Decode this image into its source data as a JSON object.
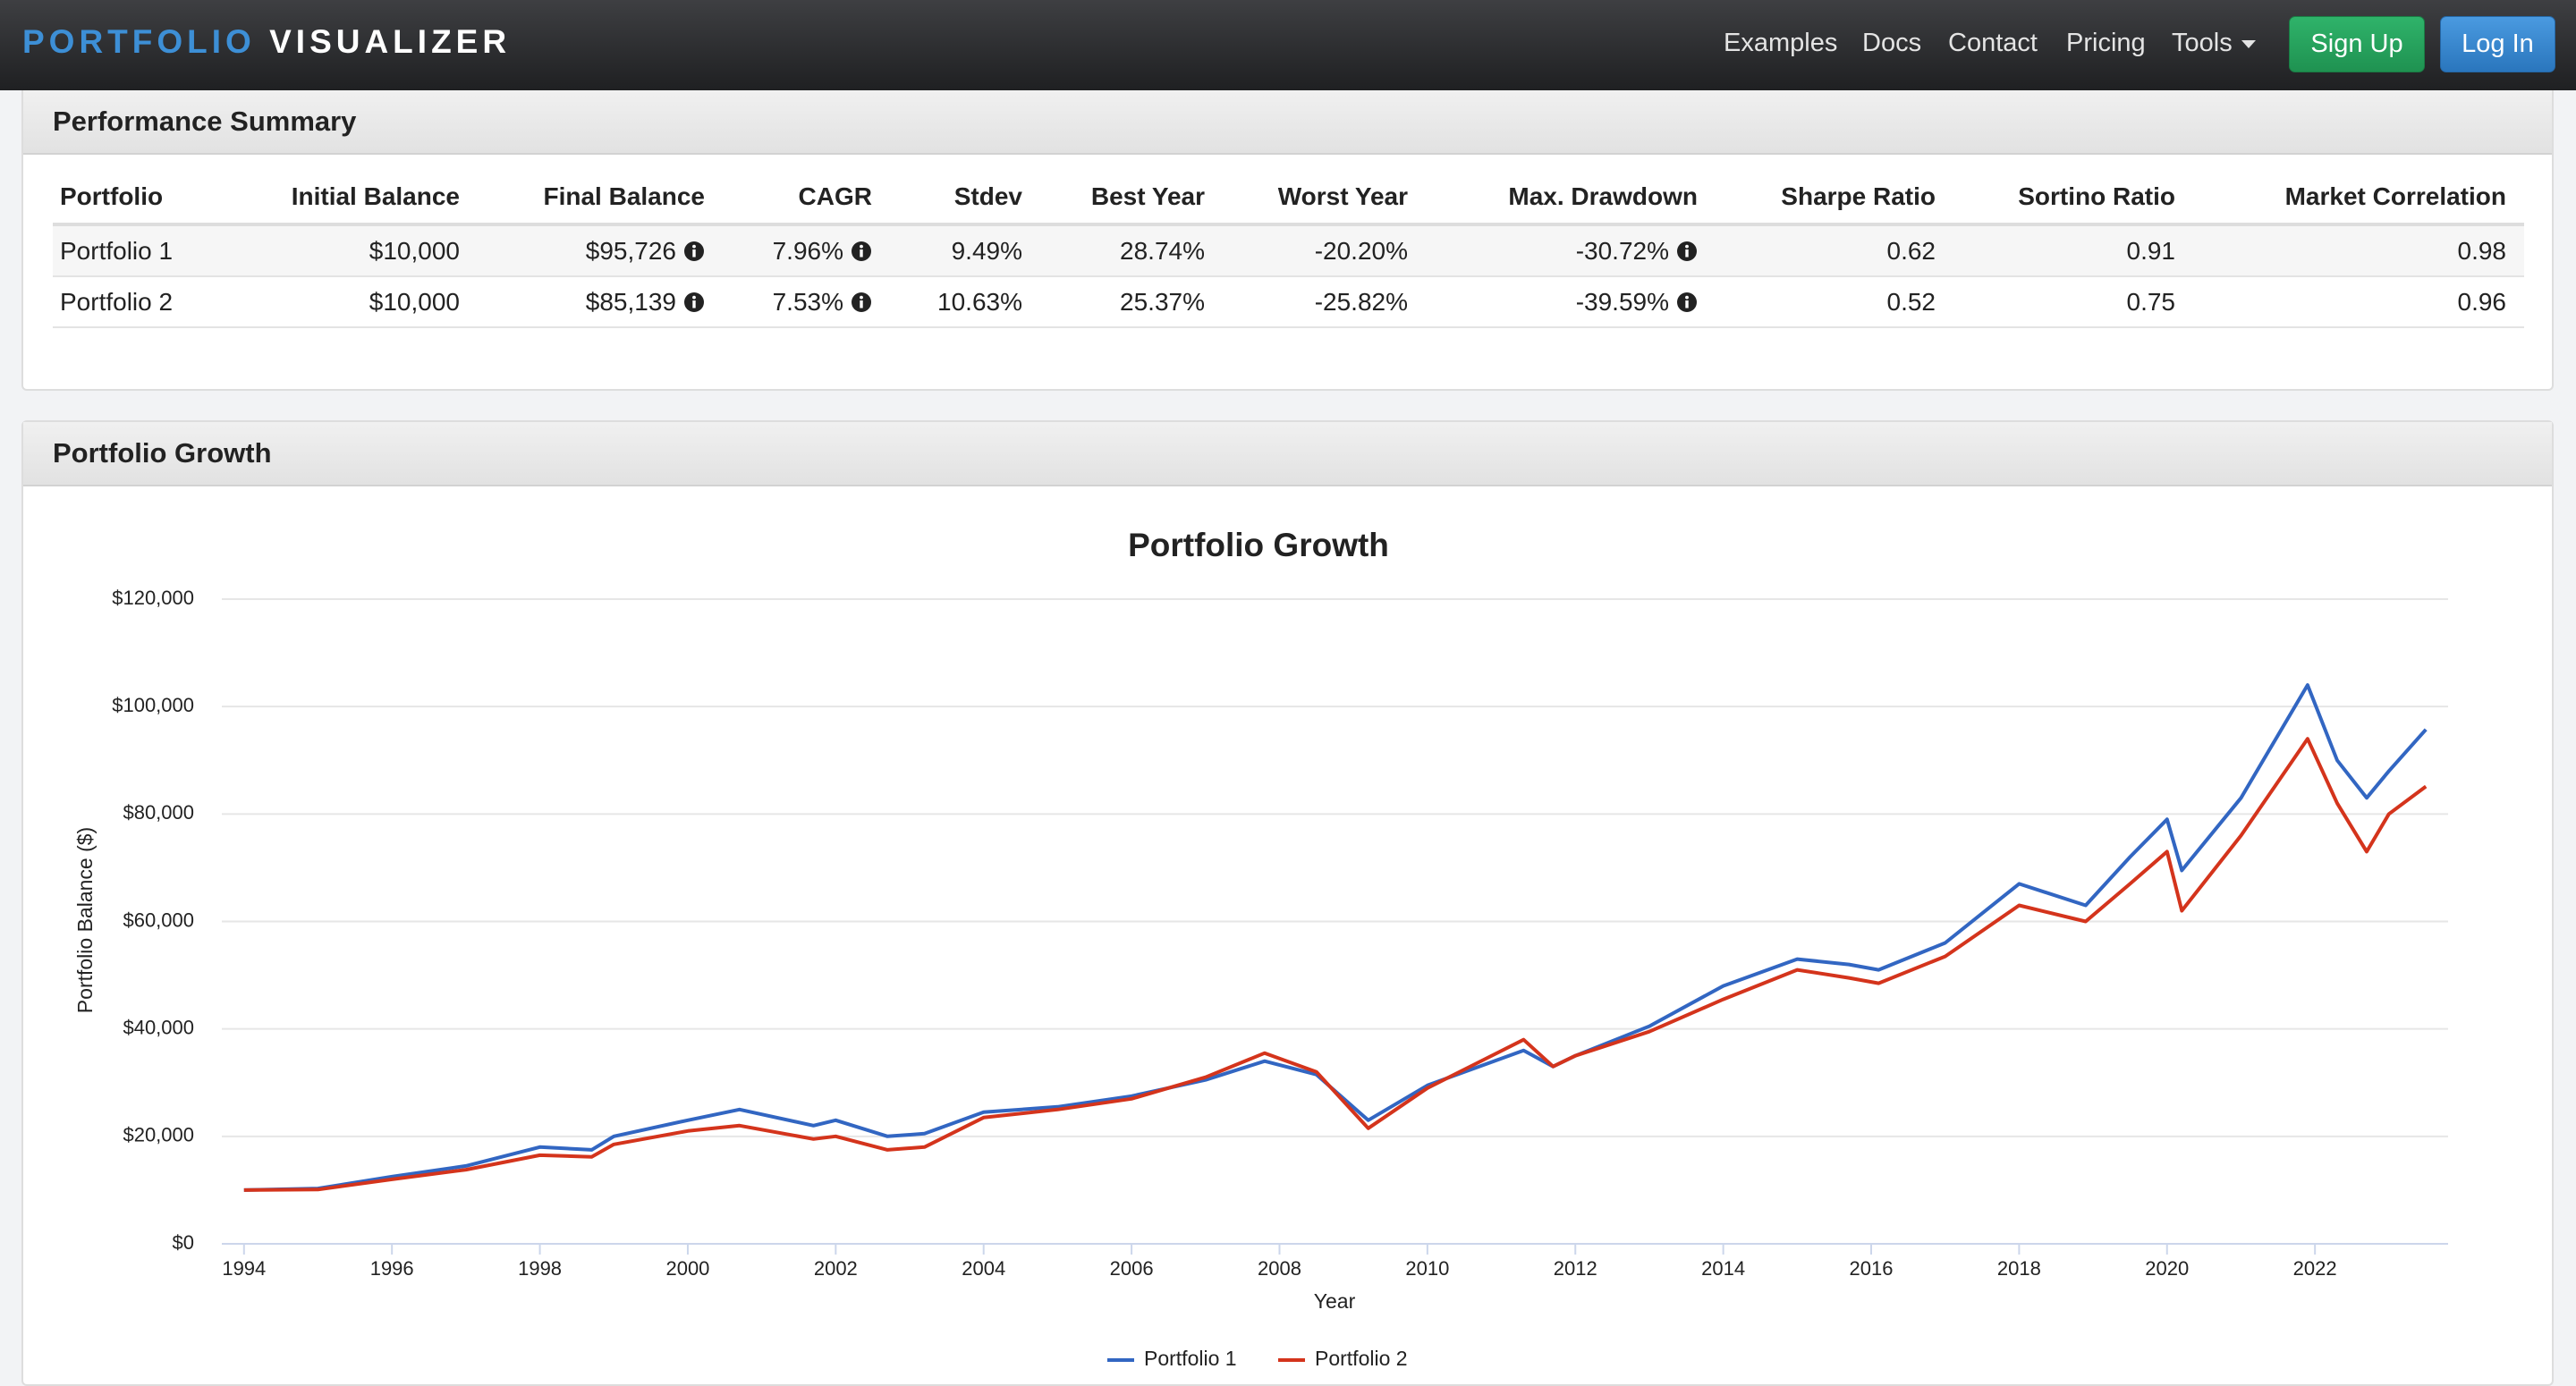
{
  "nav": {
    "brand": [
      "PORTFOLIO",
      "VISUALIZER"
    ],
    "links": [
      "Examples",
      "Docs",
      "Contact",
      "Pricing",
      "Tools"
    ],
    "signup": "Sign Up",
    "login": "Log In"
  },
  "summary": {
    "title": "Performance Summary",
    "table": {
      "header": [
        "Portfolio",
        "Initial Balance",
        "Final Balance",
        "CAGR",
        "Stdev",
        "Best Year",
        "Worst Year",
        "Max. Drawdown",
        "Sharpe Ratio",
        "Sortino Ratio",
        "Market Correlation"
      ],
      "rows": [
        [
          "Portfolio 1",
          "$10,000",
          "$95,726",
          "7.96%",
          "9.49%",
          "28.74%",
          "-20.20%",
          "-30.72%",
          "0.62",
          "0.91",
          "0.98"
        ],
        [
          "Portfolio 2",
          "$10,000",
          "$85,139",
          "7.53%",
          "10.63%",
          "25.37%",
          "-25.82%",
          "-39.59%",
          "0.52",
          "0.75",
          "0.96"
        ]
      ]
    }
  },
  "growth": {
    "title": "Portfolio Growth"
  },
  "chart_data": {
    "type": "line",
    "title": "Portfolio Growth",
    "x_label": "Year",
    "y_label": "Portfolio Balance ($)",
    "x": [
      1994.0,
      1995.0,
      1996.0,
      1997.0,
      1998.0,
      1998.7,
      1999.0,
      2000.0,
      2000.7,
      2001.7,
      2002.0,
      2002.7,
      2003.2,
      2004.0,
      2005.0,
      2006.0,
      2007.0,
      2007.8,
      2008.5,
      2009.2,
      2010.0,
      2011.3,
      2011.7,
      2012.0,
      2013.0,
      2014.0,
      2015.0,
      2015.7,
      2016.1,
      2017.0,
      2018.0,
      2018.9,
      2019.5,
      2020.0,
      2020.2,
      2021.0,
      2021.9,
      2022.3,
      2022.7,
      2023.0,
      2023.5
    ],
    "series": [
      {
        "name": "Portfolio 1",
        "color": "#3266c2",
        "values": [
          10000,
          10300,
          12500,
          14500,
          18000,
          17500,
          20000,
          23000,
          25000,
          22000,
          23000,
          20000,
          20500,
          24500,
          25500,
          27500,
          30500,
          34000,
          31500,
          23000,
          29500,
          36000,
          33000,
          35000,
          40500,
          48000,
          53000,
          52000,
          51000,
          56000,
          67000,
          63000,
          72000,
          79000,
          69500,
          83000,
          104000,
          90000,
          83000,
          88000,
          95726
        ]
      },
      {
        "name": "Portfolio 2",
        "color": "#d4341c",
        "values": [
          10000,
          10100,
          12000,
          13800,
          16500,
          16200,
          18500,
          21000,
          22000,
          19500,
          20000,
          17500,
          18000,
          23500,
          25000,
          27000,
          31000,
          35500,
          32000,
          21500,
          29000,
          38000,
          33000,
          35000,
          39500,
          45500,
          51000,
          49500,
          48500,
          53500,
          63000,
          60000,
          67000,
          73000,
          62000,
          76000,
          94000,
          82000,
          73000,
          80000,
          85139
        ]
      }
    ],
    "xlim": [
      1993.7,
      2023.8
    ],
    "ylim": [
      0,
      120000
    ],
    "xticks": [
      1994,
      1996,
      1998,
      2000,
      2002,
      2004,
      2006,
      2008,
      2010,
      2012,
      2014,
      2016,
      2018,
      2020,
      2022
    ],
    "yticks": [
      {
        "value": 0,
        "label": "$0"
      },
      {
        "value": 20000,
        "label": "$20,000"
      },
      {
        "value": 40000,
        "label": "$40,000"
      },
      {
        "value": 60000,
        "label": "$60,000"
      },
      {
        "value": 80000,
        "label": "$80,000"
      },
      {
        "value": 100000,
        "label": "$100,000"
      },
      {
        "value": 120000,
        "label": "$120,000"
      }
    ],
    "grid": true,
    "legend": "bottom"
  }
}
